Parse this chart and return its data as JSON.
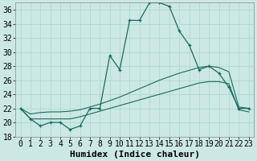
{
  "xlabel": "Humidex (Indice chaleur)",
  "background_color": "#cce8e4",
  "line_color": "#1a6b5e",
  "grid_color": "#aad4cc",
  "xlim": [
    -0.5,
    23.5
  ],
  "ylim": [
    18,
    37
  ],
  "yticks": [
    18,
    20,
    22,
    24,
    26,
    28,
    30,
    32,
    34,
    36
  ],
  "xticks": [
    0,
    1,
    2,
    3,
    4,
    5,
    6,
    7,
    8,
    9,
    10,
    11,
    12,
    13,
    14,
    15,
    16,
    17,
    18,
    19,
    20,
    21,
    22,
    23
  ],
  "series_main": [
    22,
    20.5,
    19.5,
    20,
    20,
    19,
    19.5,
    22,
    22,
    29.5,
    27.5,
    34.5,
    34.5,
    37,
    37,
    36.5,
    33,
    31,
    27.5,
    28,
    27,
    25,
    22,
    22
  ],
  "series_upper": [
    22,
    21.2,
    21.4,
    21.5,
    21.5,
    21.6,
    21.8,
    22.2,
    22.6,
    23.1,
    23.6,
    24.2,
    24.8,
    25.4,
    26.0,
    26.5,
    27.0,
    27.4,
    27.8,
    28.0,
    27.8,
    27.2,
    22.2,
    22.0
  ],
  "series_lower": [
    22,
    20.5,
    20.5,
    20.5,
    20.5,
    20.5,
    20.8,
    21.2,
    21.6,
    22.0,
    22.4,
    22.8,
    23.2,
    23.6,
    24.0,
    24.4,
    24.8,
    25.2,
    25.6,
    25.8,
    25.8,
    25.5,
    21.8,
    21.5
  ],
  "font_size": 7
}
